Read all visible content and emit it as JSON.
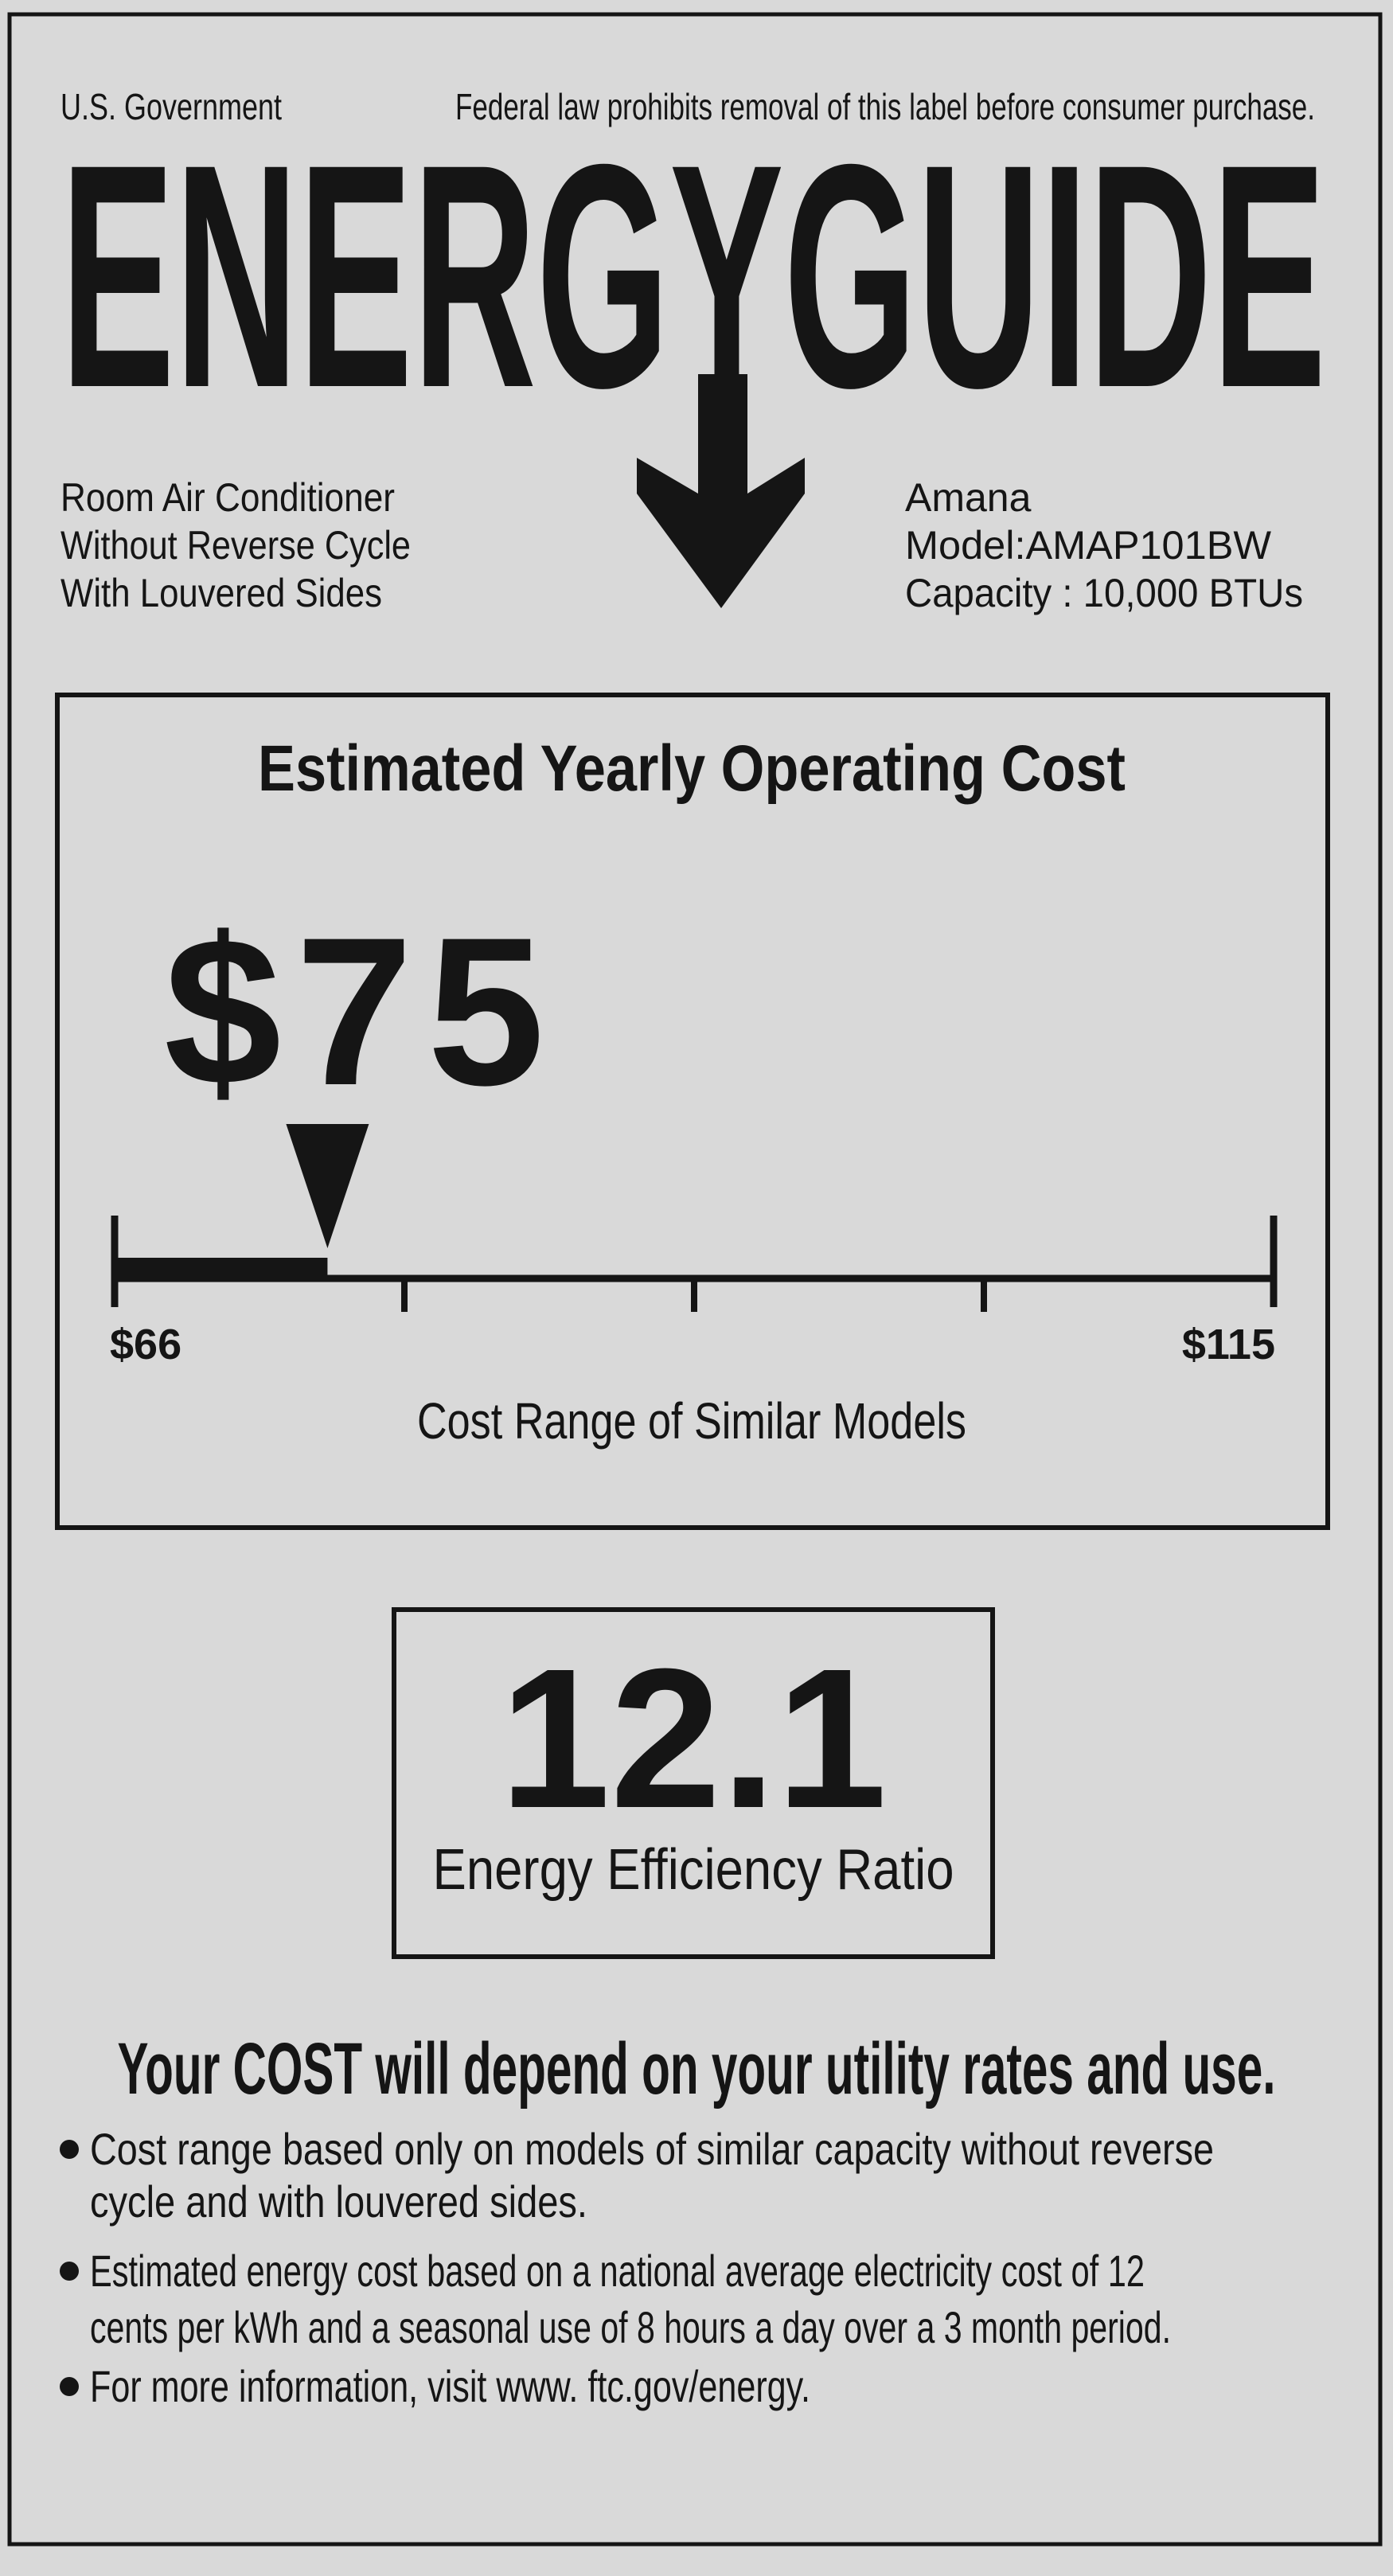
{
  "header": {
    "government": "U.S. Government",
    "notice": "Federal law prohibits removal of this label before consumer purchase.",
    "title": "ENERGYGUIDE"
  },
  "product": {
    "lines": [
      "Room Air Conditioner",
      "Without Reverse Cycle",
      "With Louvered Sides"
    ]
  },
  "manufacturer": {
    "lines": [
      "Amana",
      "Model:AMAP101BW",
      "Capacity : 10,000 BTUs"
    ]
  },
  "cost_box": {
    "title": "Estimated Yearly Operating Cost",
    "cost": {
      "value": 75,
      "label": "$75"
    },
    "range_min": {
      "value": 66,
      "label": "$66"
    },
    "range_max": {
      "value": 115,
      "label": "$115"
    },
    "caption": "Cost Range of Similar Models"
  },
  "efficiency": {
    "value": "12.1",
    "label": "Energy Efficiency Ratio"
  },
  "notes": {
    "heading": "Your COST will depend on your utility rates and use.",
    "bullets": [
      [
        "Cost range based only on models of similar capacity without reverse",
        "cycle and with louvered sides."
      ],
      [
        "Estimated energy cost based on a national average electricity cost of 12",
        "cents per kWh and a seasonal use of 8 hours a day over a 3 month period."
      ],
      [
        "For more information, visit www. ftc.gov/energy."
      ]
    ]
  }
}
